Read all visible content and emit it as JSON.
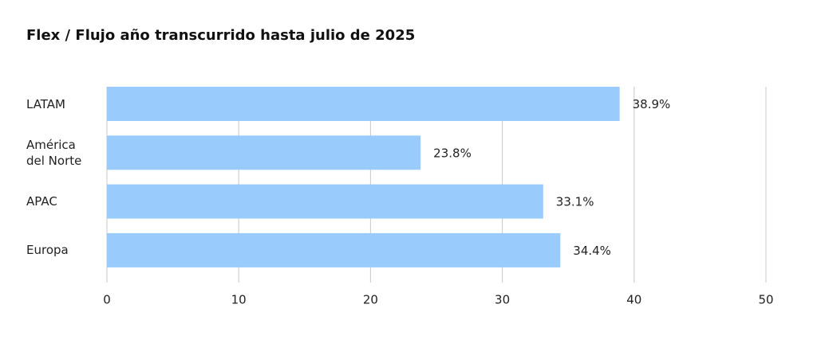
{
  "chart_data": {
    "type": "hbar",
    "title": "Flex / Flujo año transcurrido hasta julio de 2025",
    "categories": [
      "LATAM",
      "América del Norte",
      "APAC",
      "Europa"
    ],
    "values": [
      38.9,
      23.8,
      33.1,
      34.4
    ],
    "value_labels": [
      "38.9%",
      "23.8%",
      "33.1%",
      "34.4%"
    ],
    "color": "#99cbfd",
    "xlim": [
      0,
      50
    ],
    "xticks": [
      0,
      10,
      20,
      30,
      40,
      50
    ],
    "grid": true
  }
}
